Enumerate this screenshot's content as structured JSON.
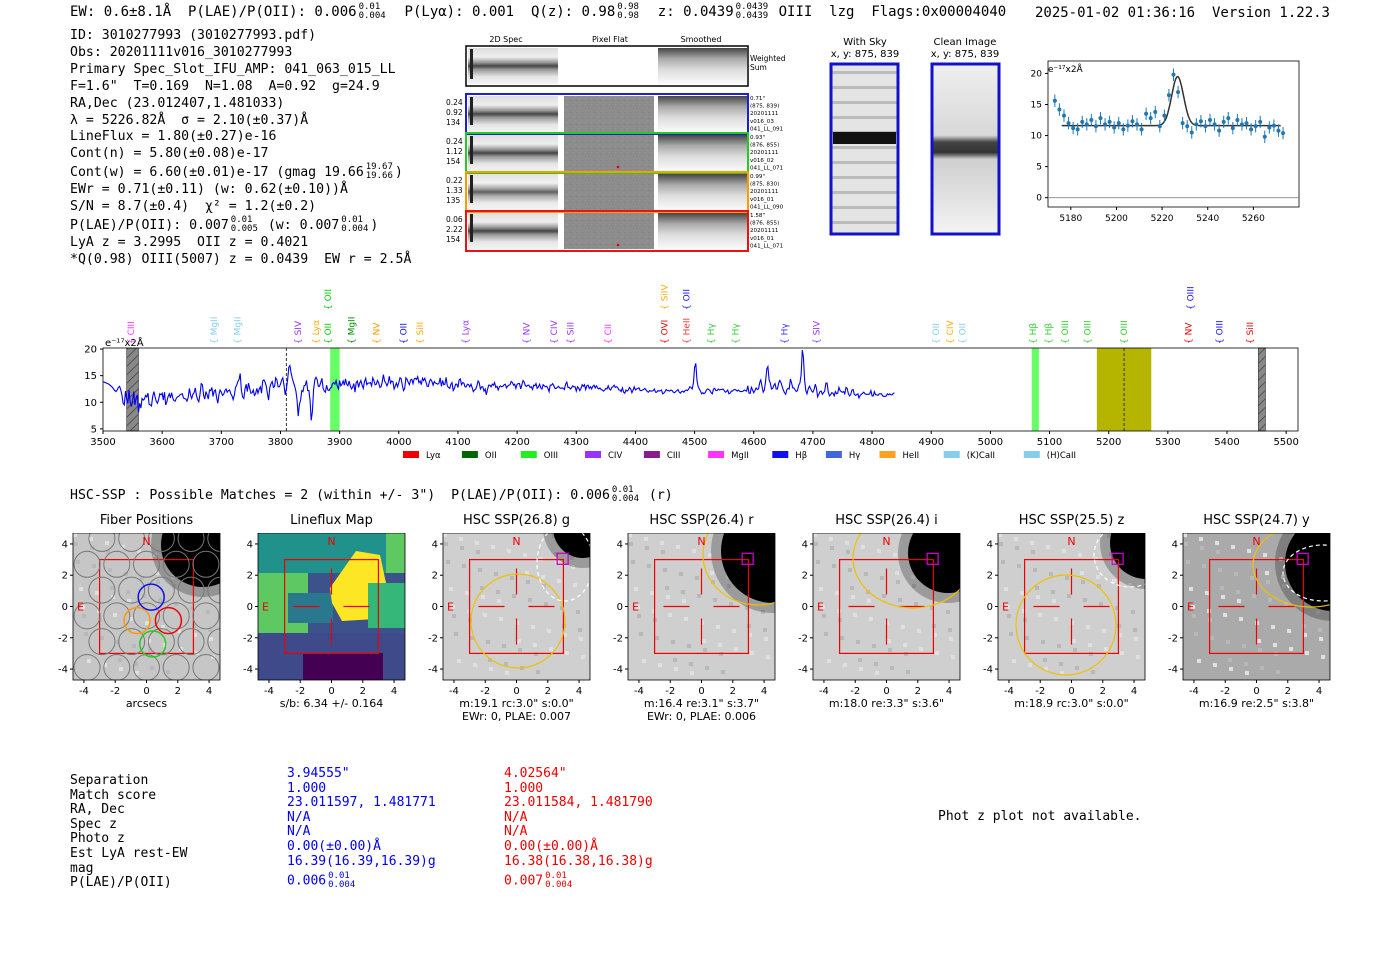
{
  "header": {
    "line": [
      "EW: 0.6±8.1Å  P(LAE)/P(OII): 0.006",
      "0.01",
      "0.004",
      "  P(Lyα): 0.001  Q(z): 0.98",
      "0.98",
      "0.98",
      "  z: 0.0439",
      "0.0439",
      "0.0439",
      " OIII  lzg  Flags:0x00004040"
    ],
    "timestamp": "2025-01-02 01:36:16",
    "version": "Version 1.22.3"
  },
  "info": [
    "ID: 3010277993 (3010277993.pdf)",
    "Obs: 20201111v016_3010277993",
    "Primary Spec_Slot_IFU_AMP: 041_063_015_LL",
    "F=1.6\"  T=0.169  N=1.08  A=0.92  g=24.9",
    "RA,Dec (23.012407,1.481033)",
    "λ = 5226.82Å  σ = 2.10(±0.37)Å",
    "LineFlux = 1.80(±0.27)e-16",
    "Cont(n) = 5.80(±0.08)e-17"
  ],
  "info2": {
    "contw": [
      "Cont(w) = 6.60(±0.01)e-17 (gmag 19.66",
      "19.67",
      "19.66",
      ")"
    ],
    "ewr": "EWr = 0.71(±0.11) (w: 0.62(±0.10))Å",
    "sn": "S/N = 8.7(±0.4)  χ² = 1.2(±0.2)",
    "plae": [
      "P(LAE)/P(OII): 0.007",
      "0.01",
      "0.005",
      " (w: 0.007",
      "0.01",
      "0.004",
      ")"
    ],
    "lya": "LyA z = 3.2995  OII z = 0.4021",
    "oiii": "*Q(0.98) OIII(5007) z = 0.0439  EW r = 2.5Å"
  },
  "spec2d": {
    "col_titles": [
      "2D Spec",
      "Pixel Flat",
      "Smoothed"
    ],
    "weighted": "Weighted\nSum",
    "rows": [
      {
        "left": [
          "0.24",
          "0.92",
          "134"
        ],
        "right": [
          "0.71\"",
          "(875, 839)",
          "20201111",
          "v016_03",
          "041_LL_091"
        ],
        "color": "#1f1fd0"
      },
      {
        "left": [
          "0.24",
          "1.12",
          "154"
        ],
        "right": [
          "0.93\"",
          "(876, 855)",
          "20201111",
          "v016_02",
          "041_LL_071"
        ],
        "color": "#22cc22"
      },
      {
        "left": [
          "0.22",
          "1.33",
          "135"
        ],
        "right": [
          "0.99\"",
          "(875, 830)",
          "20201111",
          "v016_01",
          "041_LL_090"
        ],
        "color": "#ff9900"
      },
      {
        "left": [
          "0.06",
          "2.22",
          "154"
        ],
        "right": [
          "1.58\"",
          "(876, 855)",
          "20201111",
          "v016_01",
          "041_LL_071"
        ],
        "color": "#ee1111"
      }
    ]
  },
  "cutouts": {
    "with_sky": "With Sky",
    "clean": "Clean Image",
    "xy": "x, y: 875, 839"
  },
  "zoom_chart": {
    "type": "scatter",
    "ylabel": "e⁻¹⁷x2Å",
    "xlim": [
      5170,
      5280
    ],
    "ylim": [
      -1.5,
      22
    ],
    "xticks": [
      5180,
      5200,
      5220,
      5240,
      5260
    ],
    "yticks": [
      0,
      5,
      10,
      15,
      20
    ],
    "points_x": [
      5173,
      5175,
      5177,
      5179,
      5181,
      5183,
      5185,
      5187,
      5189,
      5191,
      5193,
      5195,
      5197,
      5199,
      5201,
      5203,
      5205,
      5207,
      5209,
      5211,
      5213,
      5215,
      5217,
      5219,
      5221,
      5223,
      5225,
      5227,
      5229,
      5231,
      5233,
      5235,
      5237,
      5239,
      5241,
      5243,
      5245,
      5247,
      5249,
      5251,
      5253,
      5255,
      5257,
      5259,
      5261,
      5263,
      5265,
      5267,
      5269,
      5271,
      5273
    ],
    "points_y": [
      15.6,
      14.2,
      13.2,
      12.0,
      11.2,
      11.0,
      12.2,
      11.8,
      12.5,
      11.5,
      12.8,
      11.8,
      12.2,
      11.3,
      12.0,
      11.0,
      11.6,
      12.3,
      11.8,
      11.0,
      13.5,
      12.8,
      13.8,
      11.5,
      13.2,
      16.5,
      19.8,
      17.0,
      12.0,
      11.5,
      10.5,
      11.8,
      12.3,
      11.5,
      12.5,
      11.8,
      10.8,
      12.2,
      12.8,
      11.2,
      12.5,
      11.8,
      12.0,
      11.0,
      11.5,
      12.2,
      9.8,
      11.3,
      11.6,
      10.8,
      10.4
    ],
    "fit_base": 11.6,
    "fit_peak": 7.9,
    "fit_center": 5226.8,
    "fit_sigma": 2.6
  },
  "spectrum": {
    "type": "line",
    "ylabel": "e⁻¹⁷x2Å",
    "xlim": [
      3500,
      5520
    ],
    "ylim": [
      4.6,
      20.2
    ],
    "xticks": [
      3500,
      3600,
      3700,
      3800,
      3900,
      4000,
      4100,
      4200,
      4300,
      4400,
      4500,
      4600,
      4700,
      4800,
      4900,
      5000,
      5100,
      5200,
      5300,
      5400,
      5500
    ],
    "yticks": [
      5,
      10,
      15,
      20
    ],
    "x_start": 3500,
    "x_step": 2,
    "flux": [
      13.8,
      13.8,
      13.7,
      13.6,
      13.5,
      13.4,
      13.2,
      13.0,
      12.8,
      12.5,
      12.2,
      12.0,
      12.3,
      12.8,
      13.0,
      12.4,
      11.4,
      9.8,
      9.5,
      12.1,
      10.5,
      9.8,
      12.3,
      10.0,
      9.2,
      10.3,
      12.0,
      9.5,
      10.8,
      11.4,
      8.1,
      9.8,
      8.9,
      10.7,
      10.4,
      10.6,
      11.3,
      11.0,
      11.7,
      9.6,
      9.5,
      9.3,
      11.1,
      12.0,
      11.0,
      10.2,
      9.8,
      10.5,
      11.6,
      11.4,
      11.7,
      10.4,
      11.9,
      9.5,
      10.1,
      11.1,
      11.6,
      10.8,
      11.8,
      10.8,
      10.3,
      10.2,
      10.8,
      11.0,
      11.1,
      11.4,
      11.5,
      11.6,
      10.8,
      10.7,
      10.6,
      10.2,
      10.9,
      12.6,
      11.3,
      10.7,
      11.5,
      11.8,
      12.7,
      11.2,
      10.5,
      10.1,
      11.5,
      13.5,
      13.3,
      11.3,
      10.6,
      12.0,
      11.4,
      10.6,
      12.3,
      12.2,
      12.8,
      11.1,
      12.1,
      12.3,
      10.9,
      9.8,
      11.5,
      12.3,
      11.9,
      11.3,
      11.5,
      12.2,
      12.5,
      11.9,
      12.2,
      12.3,
      11.6,
      11.2,
      10.5,
      11.3,
      12.8,
      13.2,
      13.9,
      14.3,
      15.4,
      12.2,
      11.0,
      10.7,
      12.5,
      13.4,
      12.0,
      13.6,
      12.6,
      11.7,
      11.8,
      12.3,
      11.3,
      11.6,
      12.6,
      11.7,
      12.5,
      12.9,
      11.7,
      14.0,
      14.2,
      13.8,
      13.0,
      11.5,
      10.4,
      12.8,
      13.5,
      13.9,
      12.8,
      13.0,
      14.6,
      14.2,
      12.9,
      12.9,
      13.4,
      14.2,
      14.6,
      13.2,
      11.4,
      12.5,
      14.2,
      16.6,
      16.9,
      15.5,
      14.5,
      13.7,
      13.0,
      12.1,
      10.5,
      7.4,
      9.6,
      10.4,
      12.2,
      12.0,
      13.1,
      13.2,
      14.1,
      12.2,
      12.2,
      10.3,
      6.6,
      8.3,
      12.4,
      14.2,
      14.7,
      14.2,
      13.0,
      13.0,
      13.7,
      14.5,
      12.6,
      12.1,
      11.9,
      13.2,
      12.3,
      12.2,
      12.6,
      12.8,
      13.5,
      13.7,
      13.4,
      14.1,
      13.0,
      12.5,
      14.1,
      13.1,
      13.4,
      14.0,
      13.2,
      14.4,
      13.4,
      13.1,
      14.0,
      13.1,
      12.5,
      12.8,
      13.5,
      11.9,
      13.7,
      14.0,
      12.8,
      13.6,
      14.1,
      13.2,
      12.6,
      13.9,
      14.5,
      13.3,
      13.6,
      13.6,
      13.7,
      13.1,
      14.6,
      14.1,
      13.3,
      13.4,
      14.1,
      13.6,
      12.8,
      12.9,
      13.8,
      15.2,
      14.0,
      13.6,
      13.1,
      13.6,
      14.9,
      13.6,
      14.0,
      13.9,
      12.5,
      13.0,
      13.6,
      12.9,
      13.7,
      14.6,
      14.4,
      13.2,
      12.2,
      12.6,
      14.6,
      14.3,
      13.7,
      13.3,
      14.2,
      14.3,
      13.5,
      14.4,
      14.5,
      14.3,
      14.8,
      13.7,
      14.0,
      13.3,
      14.5,
      14.1,
      14.5,
      13.8,
      13.0,
      13.0,
      14.0,
      14.3,
      13.9,
      13.2,
      13.9,
      13.6,
      13.5,
      13.4,
      13.6,
      14.6,
      13.0,
      14.1,
      13.3,
      13.4,
      14.7,
      13.1,
      12.8,
      12.6,
      13.4,
      13.7,
      12.2,
      12.6,
      13.4,
      13.4,
      12.8,
      14.2,
      14.4,
      13.3,
      13.7,
      13.6,
      12.9,
      12.9,
      13.4,
      13.3,
      12.9,
      13.4,
      12.8,
      12.0,
      12.3,
      12.5,
      13.1,
      14.0,
      13.7,
      12.5,
      12.9,
      12.9,
      12.1,
      12.5,
      11.4,
      12.4,
      13.2,
      13.2,
      12.9,
      13.4,
      13.2,
      13.7,
      12.8,
      13.0,
      12.3,
      12.9,
      13.1,
      12.9,
      13.0,
      13.3,
      13.4,
      12.7,
      13.0,
      13.2,
      13.3,
      13.9,
      13.7,
      13.2,
      13.4,
      12.6,
      13.4,
      13.5,
      13.5,
      12.5,
      13.2,
      14.1,
      13.8,
      13.1,
      13.0,
      13.2,
      13.2,
      12.8,
      12.9,
      12.4,
      13.2,
      13.1,
      13.5,
      12.6,
      12.9,
      13.4,
      12.7,
      12.5,
      13.3,
      13.1,
      12.9,
      13.0,
      12.6,
      12.0,
      13.2,
      13.2,
      13.5,
      13.1,
      12.6,
      12.6,
      12.8,
      13.0,
      12.7,
      12.6,
      12.7,
      12.6,
      12.4,
      13.4,
      13.8,
      12.8,
      12.8,
      12.5,
      12.7,
      13.1,
      12.9,
      12.9,
      12.1,
      12.9,
      12.7,
      12.2,
      12.6,
      13.3,
      13.0,
      13.3,
      12.4,
      13.1,
      13.2,
      12.6,
      12.9,
      12.5,
      13.0,
      13.2,
      12.7,
      13.1,
      12.7,
      12.5,
      12.7,
      12.4,
      12.3,
      12.1,
      12.3,
      12.6,
      12.5,
      13.1,
      12.5,
      12.3,
      12.8,
      12.9,
      13.2,
      12.8,
      12.9,
      12.8,
      12.3,
      12.3,
      12.0,
      12.7,
      11.9,
      11.7,
      12.3,
      12.1,
      12.3,
      12.8,
      12.5,
      11.8,
      12.3,
      12.9,
      12.3,
      12.5,
      12.6,
      12.7,
      12.2,
      12.2,
      12.3,
      12.4,
      12.6,
      12.3,
      12.0,
      11.9,
      12.2,
      12.1,
      12.1,
      12.2,
      12.5,
      11.9,
      11.9,
      12.2,
      12.1,
      12.2,
      12.3,
      11.6,
      11.7,
      12.0,
      12.4,
      12.2,
      12.2,
      12.1,
      12.3,
      12.2,
      11.9,
      11.8,
      12.0,
      12.2,
      12.4,
      11.9,
      11.7,
      12.0,
      12.1,
      11.9,
      12.2,
      12.3,
      12.2,
      12.5,
      12.9,
      12.8,
      12.5,
      13.6,
      16.6,
      17.3,
      14.1,
      13.0,
      12.5,
      12.1,
      11.6,
      11.8,
      11.6,
      11.8,
      12.3,
      12.5,
      12.4,
      12.2,
      11.8,
      11.6,
      12.5,
      12.6,
      12.2,
      12.2,
      12.5,
      12.3,
      12.4,
      12.4,
      12.5,
      12.2,
      11.9,
      12.0,
      12.3,
      11.6,
      11.7,
      12.1,
      12.1,
      12.3,
      12.4,
      12.3,
      12.1,
      12.3,
      12.1,
      12.0,
      12.0,
      12.1,
      12.3,
      12.2,
      12.1,
      13.1,
      11.7,
      11.7,
      12.8,
      12.3,
      11.8,
      12.2,
      12.7,
      12.4,
      12.5,
      13.7,
      14.2,
      13.0,
      11.9,
      12.3,
      14.0,
      16.3,
      16.7,
      14.2,
      13.6,
      12.5,
      12.6,
      13.2,
      13.5,
      12.5,
      12.5,
      13.6,
      14.1,
      13.7,
      13.0,
      12.3,
      11.8,
      11.5,
      12.4,
      12.6,
      12.5,
      14.4,
      13.6,
      12.7,
      12.7,
      12.3,
      12.0,
      12.2,
      13.2,
      13.6,
      15.1,
      19.8,
      18.5,
      14.2,
      12.2,
      11.6,
      12.5,
      13.0,
      12.6,
      12.1,
      11.9,
      12.4,
      13.4,
      12.6,
      11.0,
      11.5,
      12.0,
      12.1,
      11.5,
      11.8,
      12.1,
      13.6,
      13.6,
      11.9,
      11.2,
      11.4,
      11.8,
      11.7,
      11.2,
      12.0,
      11.6,
      11.7,
      12.8,
      12.2,
      12.0,
      11.9,
      12.0,
      11.6,
      12.8,
      12.6,
      11.6,
      11.2,
      11.5,
      12.3,
      12.4,
      11.5,
      11.3,
      11.4,
      11.6,
      10.8,
      11.3,
      11.5,
      11.7,
      11.9,
      11.6,
      11.5,
      11.5,
      11.5,
      11.6,
      12.2,
      11.2,
      11.2,
      12.0,
      11.4,
      11.4,
      11.3,
      11.6,
      11.6,
      11.6,
      11.2,
      11.1,
      11.1,
      11.2,
      11.6,
      11.4,
      11.6,
      11.4,
      11.4,
      11.7,
      11.7
    ],
    "hatched": [
      [
        3540,
        3560
      ],
      [
        5453,
        5465
      ]
    ],
    "green_bands": [
      [
        3884,
        3900
      ],
      [
        5070,
        5082
      ]
    ],
    "olive_band": [
      5180,
      5272
    ],
    "dashed": [
      3810,
      5226
    ],
    "markers": [
      {
        "label": "CIII",
        "x": 3547,
        "tier": 1,
        "color": "#ff33ff"
      },
      {
        "label": "MgII",
        "x": 3688,
        "tier": 1,
        "color": "#87ceeb"
      },
      {
        "label": "MgII",
        "x": 3727,
        "tier": 1,
        "color": "#87ceeb"
      },
      {
        "label": "SIV",
        "x": 3830,
        "tier": 1,
        "color": "#9933ff"
      },
      {
        "label": "Lyα",
        "x": 3860,
        "tier": 1,
        "color": "#ffaa00"
      },
      {
        "label": "OII",
        "x": 3880,
        "tier": 1,
        "color": "#00cc00"
      },
      {
        "label": "OII",
        "x": 3880,
        "tier": 0,
        "color": "#00cc00"
      },
      {
        "label": "MgII",
        "x": 3920,
        "tier": 1,
        "color": "#008800"
      },
      {
        "label": "NV",
        "x": 3962,
        "tier": 1,
        "color": "#ff9900"
      },
      {
        "label": "OII",
        "x": 4008,
        "tier": 1,
        "color": "#1111ee"
      },
      {
        "label": "SiII",
        "x": 4036,
        "tier": 1,
        "color": "#ffaa00"
      },
      {
        "label": "Lyα",
        "x": 4113,
        "tier": 1,
        "color": "#9933ff"
      },
      {
        "label": "NV",
        "x": 4216,
        "tier": 1,
        "color": "#9933ff"
      },
      {
        "label": "CIV",
        "x": 4262,
        "tier": 1,
        "color": "#9933ff"
      },
      {
        "label": "SiII",
        "x": 4290,
        "tier": 1,
        "color": "#9933ff"
      },
      {
        "label": "CII",
        "x": 4354,
        "tier": 1,
        "color": "#ff33ff"
      },
      {
        "label": "SiIV",
        "x": 4449,
        "tier": 0,
        "color": "#ffaa00"
      },
      {
        "label": "OVI",
        "x": 4449,
        "tier": 1,
        "color": "#ee0000"
      },
      {
        "label": "OII",
        "x": 4486,
        "tier": 0,
        "color": "#1111ee"
      },
      {
        "label": "HeII",
        "x": 4486,
        "tier": 1,
        "color": "#ff3333"
      },
      {
        "label": "Hγ",
        "x": 4528,
        "tier": 1,
        "color": "#33cc33"
      },
      {
        "label": "Hγ",
        "x": 4569,
        "tier": 1,
        "color": "#33cc33"
      },
      {
        "label": "Hγ",
        "x": 4652,
        "tier": 1,
        "color": "#3333ff"
      },
      {
        "label": "SIV",
        "x": 4706,
        "tier": 1,
        "color": "#9933ff"
      },
      {
        "label": "OII",
        "x": 4908,
        "tier": 1,
        "color": "#87ceeb"
      },
      {
        "label": "CIV",
        "x": 4932,
        "tier": 1,
        "color": "#ffaa00"
      },
      {
        "label": "OII",
        "x": 4953,
        "tier": 1,
        "color": "#87ceeb"
      },
      {
        "label": "Hβ",
        "x": 5072,
        "tier": 1,
        "color": "#33cc33"
      },
      {
        "label": "Hβ",
        "x": 5098,
        "tier": 1,
        "color": "#33cc33"
      },
      {
        "label": "OIII",
        "x": 5126,
        "tier": 1,
        "color": "#33cc33"
      },
      {
        "label": "OIII",
        "x": 5164,
        "tier": 1,
        "color": "#33cc33"
      },
      {
        "label": "OIII",
        "x": 5226,
        "tier": 1,
        "color": "#33cc33"
      },
      {
        "label": "OIII",
        "x": 5338,
        "tier": 0,
        "color": "#1111ee"
      },
      {
        "label": "NV",
        "x": 5335,
        "tier": 1,
        "color": "#ee0000"
      },
      {
        "label": "OIII",
        "x": 5387,
        "tier": 1,
        "color": "#1111ee"
      },
      {
        "label": "SiII",
        "x": 5439,
        "tier": 1,
        "color": "#ee0000"
      }
    ],
    "legend": [
      {
        "label": "Lyα",
        "color": "#ee0000"
      },
      {
        "label": "OII",
        "color": "#006600"
      },
      {
        "label": "OIII",
        "color": "#22ee22"
      },
      {
        "label": "CIV",
        "color": "#9933ff"
      },
      {
        "label": "CIII",
        "color": "#8b1a8b"
      },
      {
        "label": "MgII",
        "color": "#ff33ff"
      },
      {
        "label": "Hβ",
        "color": "#1111ee"
      },
      {
        "label": "Hγ",
        "color": "#4466dd"
      },
      {
        "label": "HeII",
        "color": "#ffa020"
      },
      {
        "label": "(K)CaII",
        "color": "#87ceeb"
      },
      {
        "label": "(H)CaII",
        "color": "#87ceeb"
      }
    ]
  },
  "hsc": {
    "title": [
      "HSC-SSP : Possible Matches = 2 (within +/- 3\")  P(LAE)/P(OII): 0.006",
      "0.01",
      "0.004",
      " (r)"
    ],
    "ticks": [
      -4,
      -2,
      0,
      2,
      4
    ],
    "panels": [
      {
        "title": "Fiber Positions",
        "caption": [
          "arcsecs"
        ],
        "kind": "fiber"
      },
      {
        "title": "Lineflux Map",
        "caption": [
          "s/b: 6.34 +/- 0.164"
        ],
        "kind": "flux"
      },
      {
        "title": "HSC SSP(26.8) g",
        "caption": [
          "m:19.1 rc:3.0\"  s:0.0\"",
          "EWr: 0, PLAE: 0.007"
        ],
        "kind": "g"
      },
      {
        "title": "HSC SSP(26.4) r",
        "caption": [
          "m:16.4  re:3.1\"  s:3.7\"",
          "EWr: 0, PLAE: 0.006"
        ],
        "kind": "r"
      },
      {
        "title": "HSC SSP(26.4) i",
        "caption": [
          "m:18.0  re:3.3\"  s:3.6\""
        ],
        "kind": "i"
      },
      {
        "title": "HSC SSP(25.5) z",
        "caption": [
          "m:18.9 rc:3.0\"  s:0.0\""
        ],
        "kind": "z"
      },
      {
        "title": "HSC SSP(24.7) y",
        "caption": [
          "m:16.9  re:2.5\"  s:3.8\""
        ],
        "kind": "y"
      }
    ],
    "n_label": "N",
    "e_label": "E"
  },
  "table": {
    "labels": [
      "Separation",
      "Match score",
      "RA, Dec",
      "Spec z",
      "Photo z",
      "Est LyA rest-EW",
      "mag",
      "P(LAE)/P(OII)"
    ],
    "blue": [
      "3.94555\"",
      "1.000",
      "23.011597, 1.481771",
      "N/A",
      "N/A",
      "0.00(±0.00)Å",
      "16.39(16.39,16.39)g"
    ],
    "blue_plae": [
      "0.006",
      "0.01",
      "0.004"
    ],
    "red": [
      "4.02564\"",
      "1.000",
      "23.011584, 1.481790",
      "N/A",
      "N/A",
      "0.00(±0.00)Å",
      "16.38(16.38,16.38)g"
    ],
    "red_plae": [
      "0.007",
      "0.01",
      "0.004"
    ],
    "photz_note": "Phot z plot not available."
  }
}
